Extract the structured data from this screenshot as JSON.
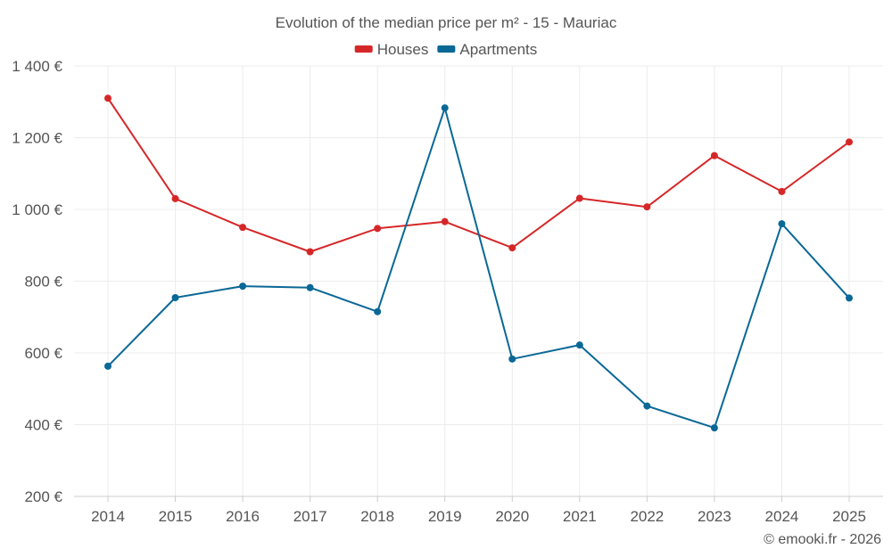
{
  "chart_data": {
    "type": "line",
    "title": "Evolution of the median price per m² - 15 - Mauriac",
    "categories": [
      "2014",
      "2015",
      "2016",
      "2017",
      "2018",
      "2019",
      "2020",
      "2021",
      "2022",
      "2023",
      "2024",
      "2025"
    ],
    "series": [
      {
        "name": "Houses",
        "color": "#d62728",
        "values": [
          1310,
          1030,
          950,
          882,
          947,
          966,
          893,
          1031,
          1007,
          1150,
          1050,
          1188
        ]
      },
      {
        "name": "Apartments",
        "color": "#0a6896",
        "values": [
          563,
          754,
          786,
          782,
          715,
          1283,
          583,
          622,
          452,
          391,
          960,
          753
        ]
      }
    ],
    "ylim": [
      200,
      1400
    ],
    "yticks": [
      200,
      400,
      600,
      800,
      1000,
      1200,
      1400
    ],
    "ytick_labels": [
      "200 €",
      "400 €",
      "600 €",
      "800 €",
      "1 000 €",
      "1 200 €",
      "1 400 €"
    ],
    "xlabel": "",
    "ylabel": "",
    "grid": true,
    "legend_position": "top-center"
  },
  "footer": {
    "copyright": "© emooki.fr - 2026"
  }
}
